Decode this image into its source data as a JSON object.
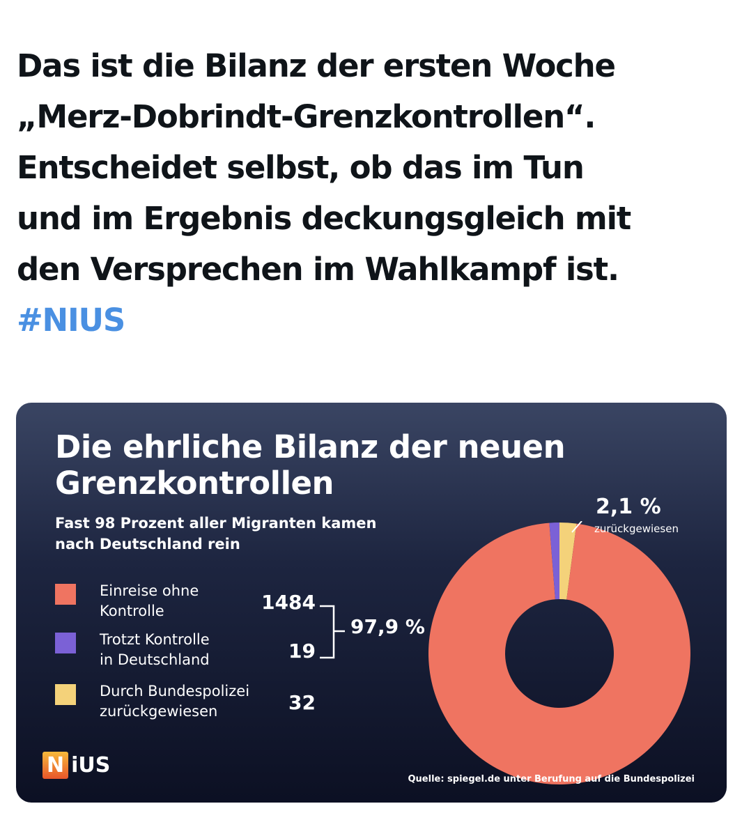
{
  "post": {
    "lines": [
      "Das ist die Bilanz der ersten Woche",
      "„Merz-Dobrindt-Grenzkontrollen“.",
      "Entscheidet selbst, ob das im Tun",
      "und im Ergebnis deckungsgleich mit",
      "den Versprechen im Wahlkampf ist."
    ],
    "hashtag": "#NIUS"
  },
  "chart_data": {
    "type": "pie",
    "variant": "donut",
    "title_line1": "Die ehrliche Bilanz der neuen",
    "title_line2": "Grenzkontrollen",
    "subtitle_line1": "Fast 98 Prozent aller Migranten kamen",
    "subtitle_line2": "nach Deutschland rein",
    "categories": [
      {
        "label_line1": "Einreise ohne",
        "label_line2": "Kontrolle",
        "value": 1484,
        "value_label": "1484",
        "color": "#ef7461"
      },
      {
        "label_line1": "Trotzt Kontrolle",
        "label_line2": "in Deutschland",
        "value": 19,
        "value_label": "19",
        "color": "#7b61d6"
      },
      {
        "label_line1": "Durch Bundespolizei",
        "label_line2": "zurückgewiesen",
        "value": 32,
        "value_label": "32",
        "color": "#f4d27a"
      }
    ],
    "group_label": "97,9 %",
    "callout_pct": "2,1 %",
    "callout_label": "zurückgewiesen",
    "source": "Quelle: spiegel.de unter Berufung auf die Bundespolizei",
    "logo_first": "N",
    "logo_rest": "iUS"
  }
}
